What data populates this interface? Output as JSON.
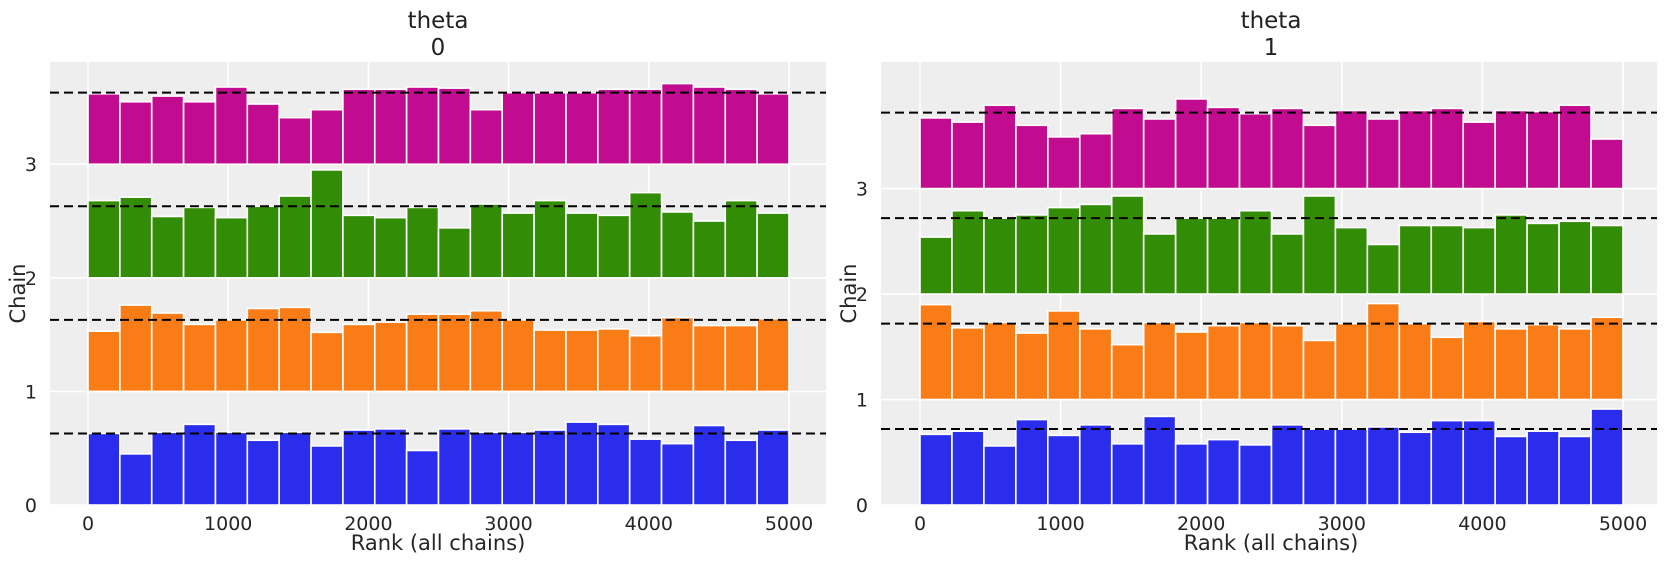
{
  "chart_data": [
    {
      "type": "bar",
      "title_line1": "theta",
      "title_line2": "0",
      "xlabel": "Rank (all chains)",
      "ylabel": "Chain",
      "xlim": [
        -250,
        5250
      ],
      "ylim": [
        0,
        3.9
      ],
      "xticks": [
        "0",
        "1000",
        "2000",
        "3000",
        "4000",
        "5000"
      ],
      "yticks": [
        "0",
        "1",
        "2",
        "3"
      ],
      "bin_width": 227.27,
      "bins": 22,
      "grid": true,
      "series": [
        {
          "chain": 0,
          "color": "#2a2eec",
          "reference": 0.63,
          "values": [
            0.63,
            0.45,
            0.64,
            0.71,
            0.64,
            0.57,
            0.64,
            0.52,
            0.66,
            0.67,
            0.48,
            0.67,
            0.64,
            0.64,
            0.66,
            0.73,
            0.71,
            0.58,
            0.54,
            0.7,
            0.57,
            0.66
          ]
        },
        {
          "chain": 1,
          "color": "#fa7c17",
          "reference": 0.63,
          "values": [
            0.53,
            0.76,
            0.69,
            0.59,
            0.63,
            0.73,
            0.74,
            0.52,
            0.59,
            0.61,
            0.68,
            0.68,
            0.71,
            0.63,
            0.54,
            0.54,
            0.55,
            0.49,
            0.65,
            0.58,
            0.58,
            0.64
          ]
        },
        {
          "chain": 2,
          "color": "#328c06",
          "reference": 0.63,
          "values": [
            0.68,
            0.71,
            0.54,
            0.62,
            0.53,
            0.63,
            0.72,
            0.95,
            0.55,
            0.53,
            0.62,
            0.44,
            0.65,
            0.57,
            0.68,
            0.57,
            0.55,
            0.75,
            0.58,
            0.5,
            0.68,
            0.57
          ]
        },
        {
          "chain": 3,
          "color": "#c10c90",
          "reference": 0.63,
          "values": [
            0.62,
            0.55,
            0.6,
            0.55,
            0.68,
            0.53,
            0.41,
            0.48,
            0.66,
            0.66,
            0.68,
            0.67,
            0.48,
            0.63,
            0.63,
            0.63,
            0.66,
            0.66,
            0.71,
            0.68,
            0.66,
            0.62
          ]
        }
      ]
    },
    {
      "type": "bar",
      "title_line1": "theta",
      "title_line2": "1",
      "xlabel": "Rank (all chains)",
      "ylabel": "Chain",
      "xlim": [
        -250,
        5250
      ],
      "ylim": [
        0,
        4.2
      ],
      "xticks": [
        "0",
        "1000",
        "2000",
        "3000",
        "4000",
        "5000"
      ],
      "yticks": [
        "0",
        "1",
        "2",
        "3"
      ],
      "bin_width": 227.27,
      "bins": 22,
      "grid": true,
      "series": [
        {
          "chain": 0,
          "color": "#2a2eec",
          "reference": 0.72,
          "values": [
            0.67,
            0.7,
            0.56,
            0.81,
            0.66,
            0.76,
            0.58,
            0.84,
            0.58,
            0.62,
            0.57,
            0.76,
            0.72,
            0.72,
            0.74,
            0.69,
            0.8,
            0.8,
            0.65,
            0.7,
            0.65,
            0.91
          ]
        },
        {
          "chain": 1,
          "color": "#fa7c17",
          "reference": 0.72,
          "values": [
            0.9,
            0.68,
            0.73,
            0.63,
            0.84,
            0.67,
            0.52,
            0.73,
            0.64,
            0.7,
            0.73,
            0.7,
            0.56,
            0.72,
            0.91,
            0.72,
            0.59,
            0.74,
            0.67,
            0.71,
            0.67,
            0.78
          ]
        },
        {
          "chain": 2,
          "color": "#328c06",
          "reference": 0.72,
          "values": [
            0.54,
            0.79,
            0.72,
            0.75,
            0.82,
            0.85,
            0.93,
            0.57,
            0.72,
            0.72,
            0.79,
            0.57,
            0.93,
            0.63,
            0.47,
            0.65,
            0.65,
            0.63,
            0.75,
            0.67,
            0.69,
            0.65
          ]
        },
        {
          "chain": 3,
          "color": "#c10c90",
          "reference": 0.72,
          "values": [
            0.67,
            0.63,
            0.79,
            0.6,
            0.49,
            0.52,
            0.76,
            0.66,
            0.85,
            0.77,
            0.71,
            0.76,
            0.6,
            0.74,
            0.66,
            0.74,
            0.76,
            0.63,
            0.74,
            0.73,
            0.79,
            0.47
          ]
        }
      ]
    }
  ]
}
